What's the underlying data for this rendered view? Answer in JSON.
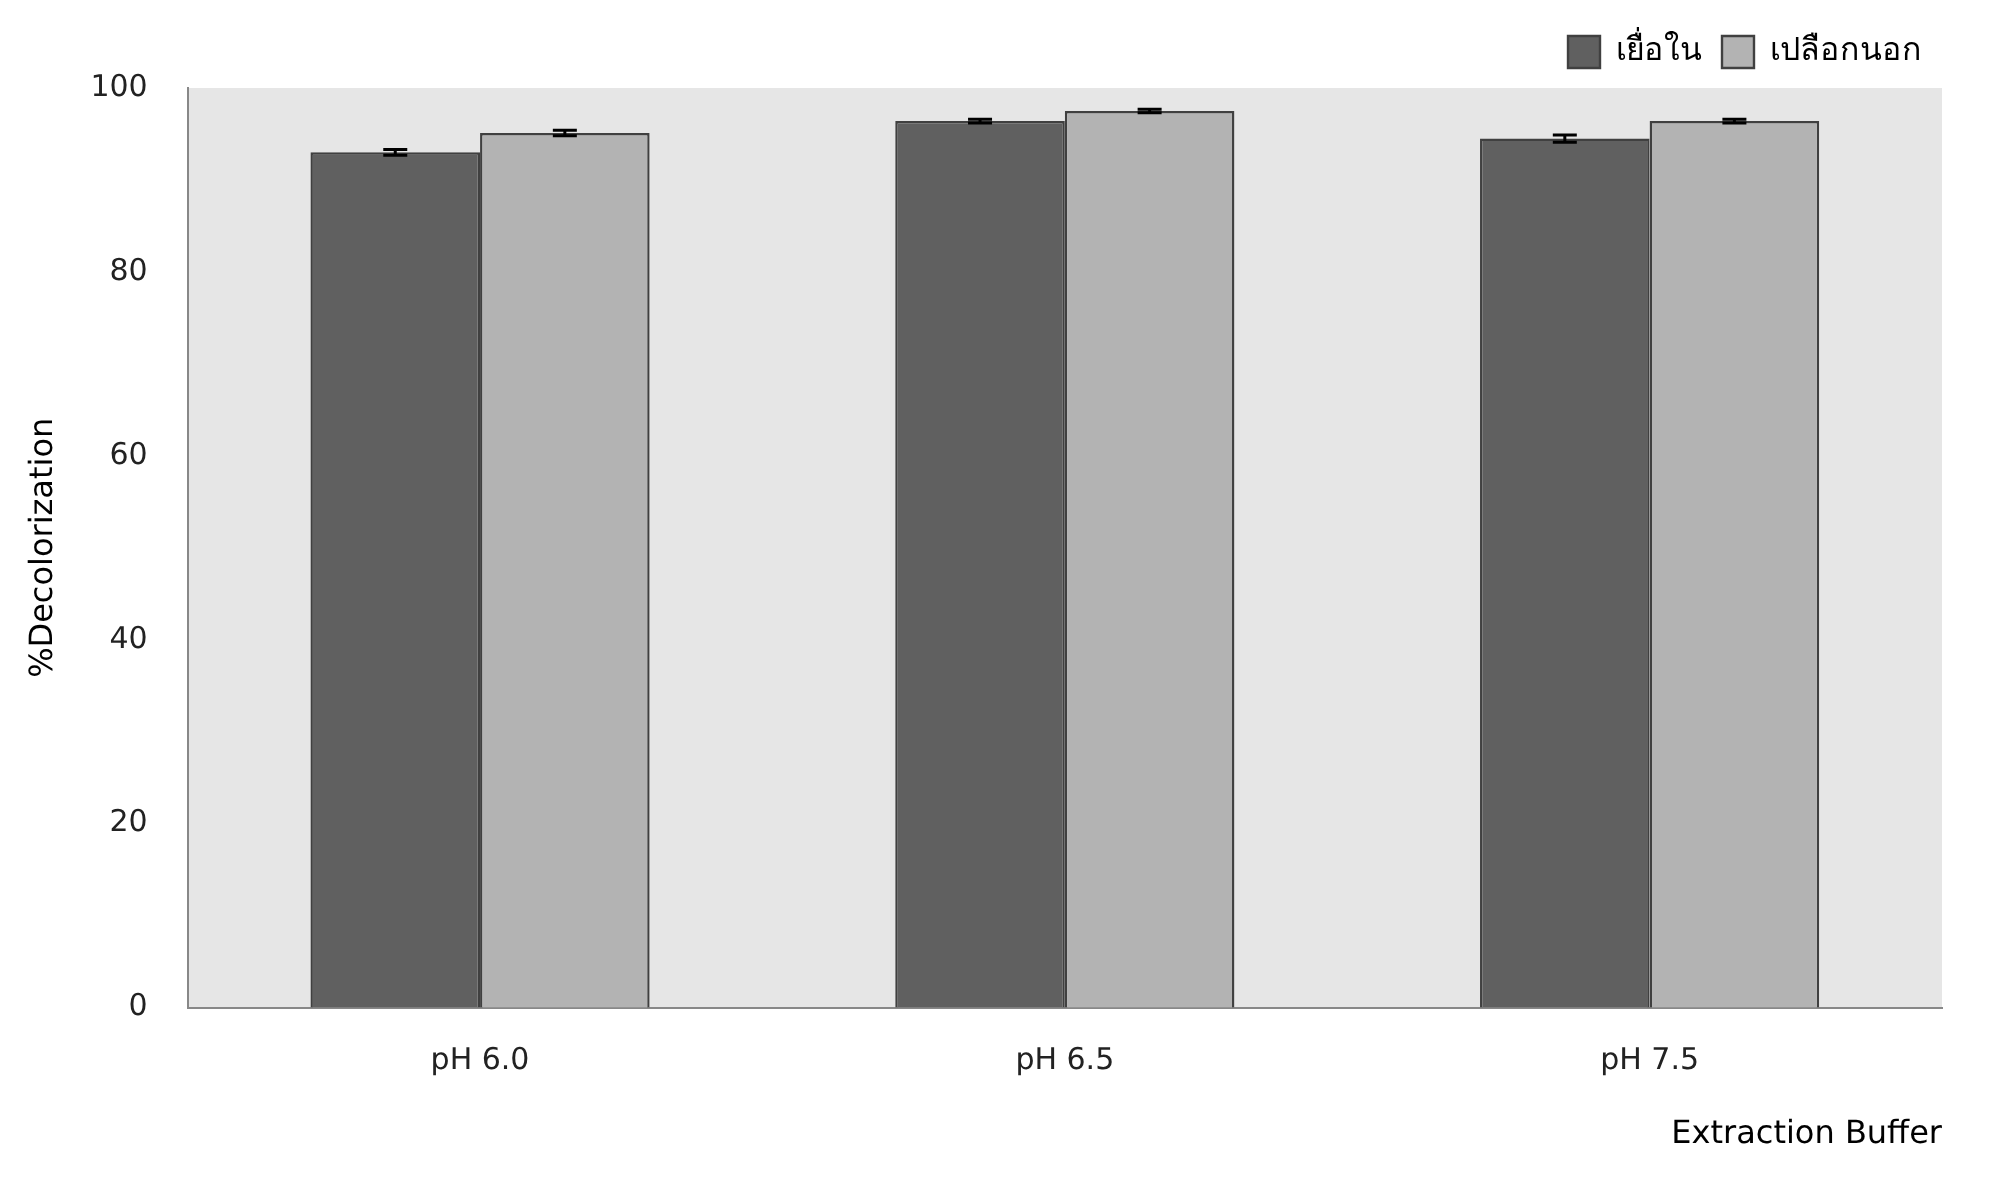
{
  "chart_data": {
    "type": "bar",
    "xlabel": "Extraction Buffer",
    "ylabel": "%Decolorization",
    "categories": [
      "pH 6.0",
      "pH 6.5",
      "pH 7.5"
    ],
    "series": [
      {
        "name": "เยื่อใน",
        "color": "#606060",
        "values": [
          93.0,
          96.4,
          94.5
        ],
        "errors": [
          0.3,
          0.2,
          0.4
        ]
      },
      {
        "name": "เปลือกนอก",
        "color": "#b3b3b3",
        "values": [
          95.1,
          97.5,
          96.4
        ],
        "errors": [
          0.3,
          0.2,
          0.2
        ]
      }
    ],
    "ylim": [
      0,
      100
    ],
    "yticks": [
      0,
      20,
      40,
      60,
      80,
      100
    ],
    "grid": false,
    "legend": "top right"
  }
}
